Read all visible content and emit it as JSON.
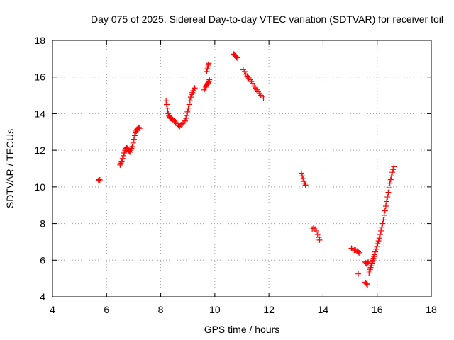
{
  "chart_data": {
    "type": "scatter",
    "title": "Day 075 of 2025, Sidereal Day-to-day VTEC variation (SDTVAR) for receiver toil",
    "xlabel": "GPS time / hours",
    "ylabel": "SDTVAR / TECUs",
    "xlim": [
      4,
      18
    ],
    "ylim": [
      4,
      18
    ],
    "xticks": [
      "4",
      "6",
      "8",
      "10",
      "12",
      "14",
      "16",
      "18"
    ],
    "yticks": [
      "4",
      "6",
      "8",
      "10",
      "12",
      "14",
      "16",
      "18"
    ],
    "grid": true,
    "marker": "plus",
    "marker_color": "#ff0000",
    "series": [
      {
        "x": [
          5.7,
          5.72,
          5.75,
          6.5,
          6.53,
          6.56,
          6.59,
          6.62,
          6.65,
          6.68,
          6.71,
          6.74,
          6.77,
          6.8,
          6.83,
          6.86,
          6.89,
          6.92,
          6.95,
          6.98,
          7.01,
          7.04,
          7.07,
          7.1,
          7.13,
          7.16,
          7.19,
          7.22,
          8.2,
          8.22,
          8.24,
          8.26,
          8.28,
          8.3,
          8.32,
          8.34,
          8.36,
          8.38,
          8.4,
          8.45,
          8.5,
          8.55,
          8.6,
          8.65,
          8.7,
          8.75,
          8.8,
          8.85,
          8.9,
          8.93,
          8.96,
          8.99,
          9.02,
          9.05,
          9.08,
          9.11,
          9.14,
          9.17,
          9.2,
          9.23,
          9.26,
          9.6,
          9.63,
          9.66,
          9.69,
          9.72,
          9.74,
          9.76,
          9.78,
          9.8,
          9.7,
          9.72,
          9.74,
          9.76,
          9.78,
          10.7,
          10.73,
          10.76,
          10.79,
          10.82,
          11.05,
          11.1,
          11.15,
          11.2,
          11.25,
          11.3,
          11.35,
          11.4,
          11.45,
          11.5,
          11.55,
          11.6,
          11.65,
          11.7,
          11.75,
          11.8,
          13.2,
          13.23,
          13.26,
          13.29,
          13.32,
          13.35,
          13.6,
          13.65,
          13.7,
          13.75,
          13.8,
          13.85,
          13.87,
          15.05,
          15.1,
          15.15,
          15.2,
          15.25,
          15.3,
          15.33,
          15.3,
          15.55,
          15.58,
          15.61,
          15.64,
          15.67,
          15.55,
          15.58,
          15.61,
          15.64,
          15.7,
          15.72,
          15.74,
          15.76,
          15.78,
          15.8,
          15.82,
          15.84,
          15.86,
          15.88,
          15.9,
          15.93,
          15.96,
          15.99,
          16.02,
          16.05,
          16.08,
          16.11,
          16.14,
          16.17,
          16.2,
          16.23,
          16.26,
          16.29,
          16.32,
          16.35,
          16.38,
          16.41,
          16.44,
          16.47,
          16.5,
          16.53,
          16.56,
          16.59,
          16.62
        ],
        "y": [
          10.35,
          10.4,
          10.38,
          11.2,
          11.3,
          11.4,
          11.55,
          11.7,
          11.85,
          12.0,
          12.1,
          12.15,
          12.1,
          12.0,
          11.95,
          11.9,
          12.0,
          12.1,
          12.2,
          12.4,
          12.6,
          12.8,
          12.95,
          13.05,
          13.15,
          13.2,
          13.25,
          13.2,
          14.7,
          14.5,
          14.3,
          14.15,
          14.0,
          13.9,
          13.85,
          13.8,
          13.75,
          13.75,
          13.72,
          13.68,
          13.6,
          13.55,
          13.45,
          13.35,
          13.3,
          13.4,
          13.45,
          13.5,
          13.6,
          13.75,
          13.9,
          14.1,
          14.3,
          14.5,
          14.7,
          14.9,
          15.05,
          15.15,
          15.25,
          15.35,
          15.4,
          15.3,
          15.35,
          15.45,
          15.55,
          15.6,
          15.65,
          15.7,
          15.75,
          15.85,
          16.3,
          16.45,
          16.55,
          16.65,
          16.75,
          17.25,
          17.2,
          17.15,
          17.1,
          17.05,
          16.4,
          16.3,
          16.15,
          16.05,
          15.95,
          15.85,
          15.75,
          15.65,
          15.5,
          15.4,
          15.3,
          15.2,
          15.1,
          15.0,
          14.95,
          14.85,
          10.75,
          10.6,
          10.45,
          10.3,
          10.2,
          10.1,
          7.7,
          7.75,
          7.7,
          7.6,
          7.4,
          7.25,
          7.1,
          6.65,
          6.6,
          6.55,
          6.55,
          6.5,
          6.45,
          6.4,
          5.25,
          5.9,
          5.85,
          5.8,
          5.85,
          5.9,
          4.8,
          4.75,
          4.7,
          4.65,
          5.3,
          5.4,
          5.5,
          5.6,
          5.7,
          5.8,
          5.9,
          6.0,
          6.1,
          6.2,
          6.3,
          6.45,
          6.6,
          6.75,
          6.9,
          7.05,
          7.2,
          7.4,
          7.6,
          7.8,
          8.0,
          8.2,
          8.45,
          8.7,
          8.95,
          9.2,
          9.45,
          9.7,
          9.95,
          10.2,
          10.4,
          10.6,
          10.8,
          10.95,
          11.1
        ]
      }
    ]
  }
}
